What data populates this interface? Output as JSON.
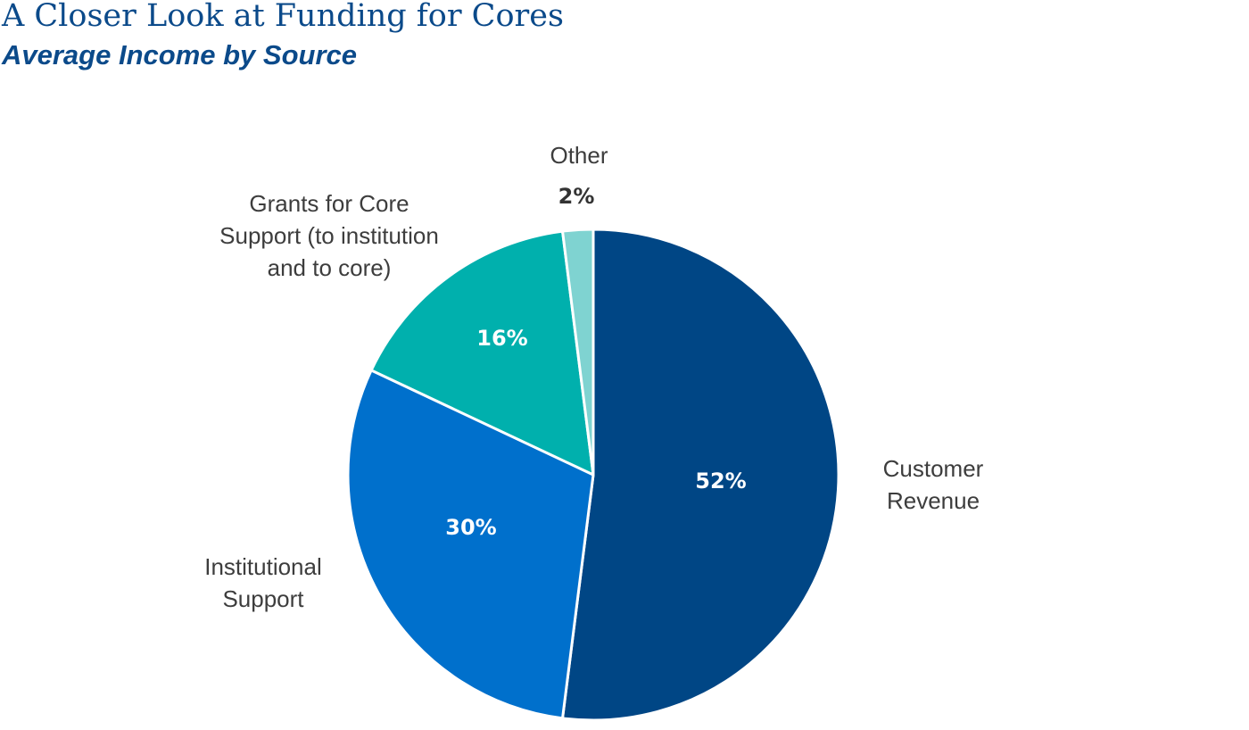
{
  "chart_data": {
    "type": "pie",
    "title": "A Closer Look at Funding for Cores",
    "subtitle": "Average Income by Source",
    "slices": [
      {
        "label": "Customer Revenue",
        "label_lines": [
          "Customer",
          "Revenue"
        ],
        "value": 52,
        "display": "52%",
        "color": "#004685",
        "text_color": "#ffffff"
      },
      {
        "label": "Institutional Support",
        "label_lines": [
          "Institutional",
          "Support"
        ],
        "value": 30,
        "display": "30%",
        "color": "#0070cc",
        "text_color": "#ffffff"
      },
      {
        "label": "Grants for Core Support (to institution and to core)",
        "label_lines": [
          "Grants for Core",
          "Support (to institution",
          "and to core)"
        ],
        "value": 16,
        "display": "16%",
        "color": "#00b0ad",
        "text_color": "#ffffff"
      },
      {
        "label": "Other",
        "label_lines": [
          "Other"
        ],
        "value": 2,
        "display": "2%",
        "color": "#7fd3d1",
        "text_color": "#333333"
      }
    ]
  }
}
